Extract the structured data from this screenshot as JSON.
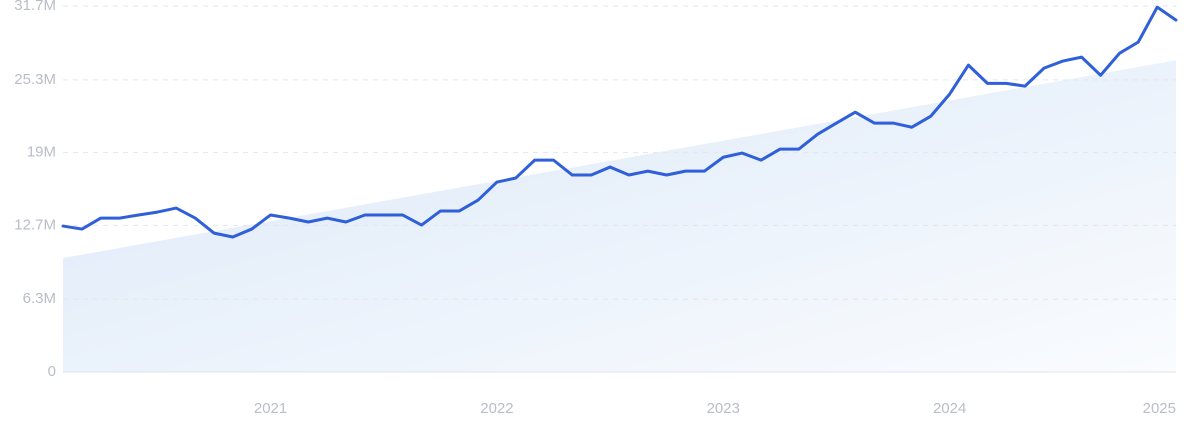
{
  "chart_data": {
    "type": "line",
    "x": [
      2020.083,
      2020.167,
      2020.25,
      2020.333,
      2020.417,
      2020.5,
      2020.583,
      2020.667,
      2020.75,
      2020.833,
      2020.917,
      2021.0,
      2021.083,
      2021.167,
      2021.25,
      2021.333,
      2021.417,
      2021.5,
      2021.583,
      2021.667,
      2021.75,
      2021.833,
      2021.917,
      2022.0,
      2022.083,
      2022.167,
      2022.25,
      2022.333,
      2022.417,
      2022.5,
      2022.583,
      2022.667,
      2022.75,
      2022.833,
      2022.917,
      2023.0,
      2023.083,
      2023.167,
      2023.25,
      2023.333,
      2023.417,
      2023.5,
      2023.583,
      2023.667,
      2023.75,
      2023.833,
      2023.917,
      2024.0,
      2024.083,
      2024.167,
      2024.25,
      2024.333,
      2024.417,
      2024.5,
      2024.583,
      2024.667,
      2024.75,
      2024.833,
      2024.917,
      2025.0
    ],
    "series": [
      {
        "color": "#2f5fd9",
        "values": [
          12.64,
          12.38,
          13.33,
          13.33,
          13.6,
          13.85,
          14.2,
          13.33,
          12.03,
          11.69,
          12.38,
          13.6,
          13.33,
          12.99,
          13.33,
          12.99,
          13.6,
          13.6,
          13.6,
          12.73,
          13.94,
          13.94,
          14.89,
          16.45,
          16.8,
          18.35,
          18.35,
          17.06,
          17.06,
          17.75,
          17.06,
          17.4,
          17.06,
          17.4,
          17.4,
          18.6,
          18.96,
          18.35,
          19.3,
          19.3,
          20.6,
          21.56,
          22.5,
          21.56,
          21.56,
          21.2,
          22.16,
          24.07,
          26.58,
          25.0,
          25.0,
          24.76,
          26.32,
          26.93,
          27.27,
          25.7,
          27.6,
          28.57,
          31.6,
          30.48
        ]
      }
    ],
    "trend": {
      "color": "#dbe8f8",
      "x": [
        2020.083,
        2025.0
      ],
      "values": [
        9.87,
        27.0
      ]
    },
    "xlim": [
      2020.083,
      2025.0
    ],
    "xticks": [
      2021,
      2022,
      2023,
      2024,
      2025
    ],
    "ylim": [
      0,
      31.7
    ],
    "yticks": [
      0,
      {
        "value": 6.3,
        "label": "6.3M"
      },
      {
        "value": 12.7,
        "label": "12.7M"
      },
      {
        "value": 19,
        "label": "19M"
      },
      {
        "value": 25.3,
        "label": "25.3M"
      },
      {
        "value": 31.7,
        "label": "31.7M"
      }
    ],
    "grid": true
  }
}
